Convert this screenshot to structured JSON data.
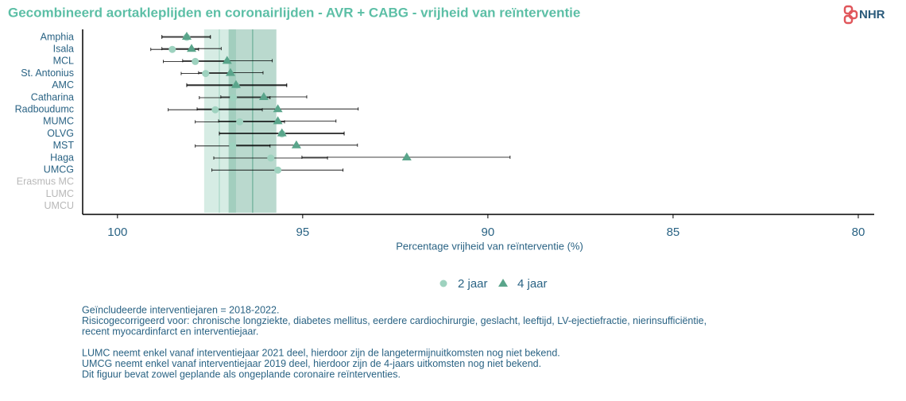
{
  "logo": "NHR",
  "chart_data": {
    "type": "forest",
    "title": "Gecombineerd aortakleplijden en coronairlijden - AVR + CABG - vrijheid van reïnterventie",
    "categories": [
      "Amphia",
      "Isala",
      "MCL",
      "St. Antonius",
      "AMC",
      "Catharina",
      "Radboudumc",
      "MUMC",
      "OLVG",
      "MST",
      "Haga",
      "UMCG",
      "Erasmus MC",
      "LUMC",
      "UMCU"
    ],
    "series": [
      {
        "name": "2 jaar",
        "marker": "circle",
        "color": "#9ed2bf",
        "values": [
          98.13,
          98.52,
          97.9,
          97.62,
          96.8,
          96.87,
          97.36,
          96.7,
          95.56,
          96.89,
          95.86,
          95.67,
          null,
          null,
          null
        ],
        "ci_upper": [
          98.8,
          99.1,
          98.76,
          98.28,
          98.13,
          97.79,
          98.63,
          97.9,
          97.25,
          97.9,
          97.4,
          97.45,
          null,
          null,
          null
        ],
        "ci_lower": [
          97.49,
          97.81,
          97.06,
          96.95,
          95.43,
          95.88,
          96.09,
          95.49,
          93.88,
          95.88,
          94.33,
          93.91,
          null,
          null,
          null
        ],
        "band": [
          97.66,
          96.8
        ],
        "mean": 97.25
      },
      {
        "name": "4 jaar",
        "marker": "triangle",
        "color": "#5aa58b",
        "values": [
          98.13,
          98.0,
          97.04,
          96.95,
          96.8,
          96.05,
          95.67,
          95.67,
          95.56,
          95.17,
          92.19,
          null,
          null,
          null,
          null
        ],
        "ci_upper": [
          98.8,
          98.8,
          98.24,
          97.81,
          98.13,
          97.21,
          97.85,
          97.27,
          97.25,
          96.89,
          95.02,
          null,
          null,
          null,
          null
        ],
        "ci_lower": [
          97.49,
          97.2,
          95.82,
          96.07,
          95.43,
          94.89,
          93.5,
          94.1,
          93.88,
          93.52,
          89.4,
          null,
          null,
          null,
          null
        ],
        "band": [
          97.0,
          95.71
        ],
        "mean": 96.35
      }
    ],
    "xlabel": "Percentage vrijheid van reïnterventie (%)",
    "xlim": [
      100.94,
      79.57
    ],
    "xticks": [
      100,
      95,
      90,
      85,
      80
    ],
    "notes": [
      [
        "Geïncludeerde interventiejaren = 2018-2022.",
        "Risicogecorrigeerd voor: chronische longziekte, diabetes mellitus, eerdere cardiochirurgie, geslacht, leeftijd, LV-ejectiefractie, nierinsufficiëntie,",
        "recent myocardinfarct en interventiejaar."
      ],
      [
        "LUMC neemt enkel vanaf interventiejaar 2021 deel, hierdoor zijn de langetermijnuitkomsten nog niet bekend.",
        "UMCG neemt enkel vanaf interventiejaar 2019 deel, hierdoor zijn de 4-jaars uitkomsten nog niet bekend.",
        "Dit figuur bevat zowel geplande als ongeplande coronaire reïnterventies."
      ]
    ]
  }
}
